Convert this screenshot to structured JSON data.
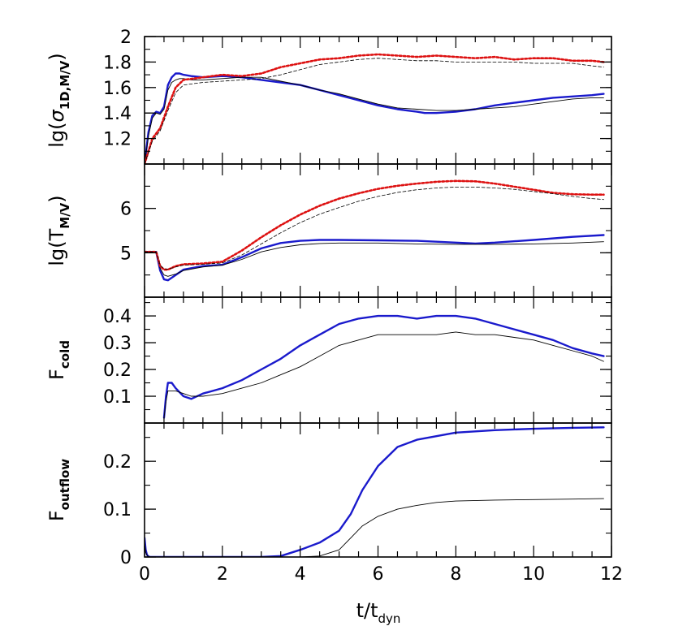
{
  "chart_data": {
    "type": "line",
    "x_axis": {
      "label_main": "t/t",
      "label_sub": "dyn",
      "range": [
        0,
        12
      ],
      "ticks": [
        0,
        2,
        4,
        6,
        8,
        10,
        12
      ],
      "tick_labels": [
        "0",
        "2",
        "4",
        "6",
        "8",
        "10",
        "12"
      ]
    },
    "panels": [
      {
        "id": "sigma",
        "ylabel_parts": [
          {
            "text": "lg(",
            "sub": false
          },
          {
            "text": "σ",
            "sub": false,
            "italic": true
          },
          {
            "text": "1D,M/V",
            "sub": true
          },
          {
            "text": ")",
            "sub": false
          }
        ],
        "ylim": [
          1.0,
          2.0
        ],
        "ticks": [
          1.2,
          1.4,
          1.6,
          1.8,
          2.0
        ],
        "tick_labels": [
          "1.2",
          "1.4",
          "1.6",
          "1.8",
          "2"
        ],
        "series": [
          {
            "style": "mass-thick",
            "color": "#1a1acc",
            "x": [
              0,
              0.1,
              0.2,
              0.3,
              0.4,
              0.5,
              0.6,
              0.7,
              0.8,
              0.9,
              1.0,
              1.2,
              1.5,
              2.0,
              2.5,
              3.0,
              3.5,
              4.0,
              4.5,
              5.0,
              5.5,
              6.0,
              6.5,
              7.0,
              7.2,
              7.5,
              8.0,
              8.5,
              9.0,
              9.5,
              10.0,
              10.5,
              11.0,
              11.5,
              11.8
            ],
            "y": [
              1.0,
              1.25,
              1.38,
              1.41,
              1.4,
              1.45,
              1.62,
              1.68,
              1.71,
              1.71,
              1.7,
              1.69,
              1.68,
              1.69,
              1.68,
              1.66,
              1.64,
              1.62,
              1.58,
              1.54,
              1.5,
              1.46,
              1.43,
              1.41,
              1.4,
              1.4,
              1.41,
              1.43,
              1.46,
              1.48,
              1.5,
              1.52,
              1.53,
              1.54,
              1.55
            ]
          },
          {
            "style": "mass-thin",
            "color": "#000000",
            "x": [
              0,
              0.1,
              0.2,
              0.3,
              0.4,
              0.5,
              0.6,
              0.7,
              0.8,
              0.9,
              1.0,
              1.2,
              1.5,
              2.0,
              2.5,
              3.0,
              3.5,
              4.0,
              4.5,
              5.0,
              5.5,
              6.0,
              6.5,
              7.0,
              7.5,
              8.0,
              8.5,
              9.0,
              9.5,
              10.0,
              10.5,
              11.0,
              11.5,
              11.8
            ],
            "y": [
              1.0,
              1.22,
              1.36,
              1.4,
              1.39,
              1.43,
              1.58,
              1.64,
              1.66,
              1.67,
              1.67,
              1.66,
              1.66,
              1.67,
              1.68,
              1.68,
              1.65,
              1.62,
              1.58,
              1.55,
              1.51,
              1.47,
              1.44,
              1.43,
              1.42,
              1.42,
              1.43,
              1.44,
              1.45,
              1.47,
              1.49,
              1.51,
              1.52,
              1.52
            ]
          },
          {
            "style": "vol-thick",
            "color": "#dd1111",
            "x": [
              0,
              0.2,
              0.4,
              0.6,
              0.8,
              1.0,
              1.5,
              2.0,
              2.5,
              3.0,
              3.5,
              4.0,
              4.5,
              5.0,
              5.5,
              6.0,
              6.5,
              7.0,
              7.5,
              8.0,
              8.5,
              9.0,
              9.5,
              10.0,
              10.5,
              11.0,
              11.5,
              11.8
            ],
            "y": [
              1.0,
              1.2,
              1.28,
              1.45,
              1.6,
              1.66,
              1.68,
              1.7,
              1.69,
              1.71,
              1.76,
              1.79,
              1.82,
              1.83,
              1.85,
              1.86,
              1.85,
              1.84,
              1.85,
              1.84,
              1.83,
              1.84,
              1.82,
              1.83,
              1.83,
              1.81,
              1.81,
              1.8
            ]
          },
          {
            "style": "vol-thin",
            "color": "#000000",
            "x": [
              0,
              0.2,
              0.4,
              0.6,
              0.8,
              1.0,
              1.5,
              2.0,
              2.5,
              3.0,
              3.5,
              4.0,
              4.5,
              5.0,
              5.5,
              6.0,
              6.5,
              7.0,
              7.5,
              8.0,
              8.5,
              9.0,
              9.5,
              10.0,
              10.5,
              11.0,
              11.5,
              11.8
            ],
            "y": [
              1.0,
              1.18,
              1.26,
              1.42,
              1.56,
              1.62,
              1.64,
              1.65,
              1.66,
              1.67,
              1.7,
              1.74,
              1.78,
              1.8,
              1.82,
              1.83,
              1.82,
              1.81,
              1.81,
              1.8,
              1.8,
              1.8,
              1.8,
              1.79,
              1.79,
              1.79,
              1.77,
              1.76
            ]
          }
        ]
      },
      {
        "id": "temperature",
        "ylabel_parts": [
          {
            "text": "lg(T",
            "sub": false
          },
          {
            "text": "M/V",
            "sub": true
          },
          {
            "text": ")",
            "sub": false
          }
        ],
        "ylim": [
          4.0,
          7.0
        ],
        "ticks": [
          5,
          6
        ],
        "tick_labels": [
          "5",
          "6"
        ],
        "series": [
          {
            "style": "mass-thick",
            "color": "#1a1acc",
            "x": [
              0,
              0.3,
              0.4,
              0.5,
              0.6,
              0.8,
              1.0,
              1.5,
              2.0,
              2.5,
              3.0,
              3.5,
              4.0,
              4.5,
              5.0,
              6.0,
              7.0,
              8.0,
              8.5,
              9.0,
              10.0,
              11.0,
              11.8
            ],
            "y": [
              5.02,
              5.02,
              4.6,
              4.4,
              4.38,
              4.5,
              4.62,
              4.7,
              4.73,
              4.9,
              5.1,
              5.22,
              5.27,
              5.29,
              5.29,
              5.28,
              5.27,
              5.23,
              5.21,
              5.23,
              5.29,
              5.36,
              5.4
            ]
          },
          {
            "style": "mass-thin",
            "color": "#000000",
            "x": [
              0,
              0.3,
              0.4,
              0.5,
              0.6,
              0.8,
              1.0,
              1.5,
              2.0,
              2.5,
              3.0,
              3.5,
              4.0,
              4.5,
              5.0,
              6.0,
              7.0,
              8.0,
              9.0,
              10.0,
              11.0,
              11.8
            ],
            "y": [
              5.02,
              5.02,
              4.65,
              4.5,
              4.47,
              4.52,
              4.6,
              4.68,
              4.72,
              4.85,
              5.02,
              5.12,
              5.18,
              5.21,
              5.22,
              5.22,
              5.2,
              5.19,
              5.19,
              5.2,
              5.22,
              5.25
            ]
          },
          {
            "style": "vol-thick",
            "color": "#dd1111",
            "x": [
              0,
              0.3,
              0.4,
              0.5,
              0.6,
              0.8,
              1.0,
              1.5,
              2.0,
              2.5,
              3.0,
              3.5,
              4.0,
              4.5,
              5.0,
              5.5,
              6.0,
              6.5,
              7.0,
              7.5,
              8.0,
              8.5,
              9.0,
              9.5,
              10.0,
              10.5,
              11.0,
              11.5,
              11.8
            ],
            "y": [
              5.02,
              5.02,
              4.7,
              4.62,
              4.62,
              4.7,
              4.74,
              4.76,
              4.8,
              5.05,
              5.35,
              5.62,
              5.86,
              6.06,
              6.22,
              6.34,
              6.44,
              6.51,
              6.56,
              6.6,
              6.62,
              6.61,
              6.56,
              6.49,
              6.42,
              6.35,
              6.32,
              6.31,
              6.31
            ]
          },
          {
            "style": "vol-thin",
            "color": "#000000",
            "x": [
              0,
              0.3,
              0.4,
              0.5,
              0.6,
              0.8,
              1.0,
              1.5,
              2.0,
              2.5,
              3.0,
              3.5,
              4.0,
              4.5,
              5.0,
              5.5,
              6.0,
              6.5,
              7.0,
              7.5,
              8.0,
              8.5,
              9.0,
              9.5,
              10.0,
              10.5,
              11.0,
              11.5,
              11.8
            ],
            "y": [
              5.02,
              5.02,
              4.72,
              4.64,
              4.63,
              4.68,
              4.72,
              4.74,
              4.77,
              4.95,
              5.2,
              5.45,
              5.68,
              5.87,
              6.02,
              6.16,
              6.27,
              6.36,
              6.42,
              6.46,
              6.48,
              6.48,
              6.46,
              6.43,
              6.38,
              6.33,
              6.27,
              6.22,
              6.2
            ]
          }
        ]
      },
      {
        "id": "fcold",
        "ylabel_parts": [
          {
            "text": "F",
            "sub": false
          },
          {
            "text": "cold",
            "sub": true
          }
        ],
        "ylim": [
          0.0,
          0.47
        ],
        "ticks": [
          0.1,
          0.2,
          0.3,
          0.4
        ],
        "tick_labels": [
          "0.1",
          "0.2",
          "0.3",
          "0.4"
        ],
        "series": [
          {
            "style": "mass-thick",
            "color": "#1a1acc",
            "x": [
              0.5,
              0.55,
              0.6,
              0.7,
              0.8,
              1.0,
              1.2,
              1.5,
              2.0,
              2.5,
              3.0,
              3.5,
              4.0,
              4.5,
              5.0,
              5.5,
              6.0,
              6.5,
              7.0,
              7.5,
              8.0,
              8.5,
              9.0,
              9.5,
              10.0,
              10.5,
              11.0,
              11.5,
              11.8
            ],
            "y": [
              0.02,
              0.1,
              0.15,
              0.15,
              0.13,
              0.1,
              0.09,
              0.11,
              0.13,
              0.16,
              0.2,
              0.24,
              0.29,
              0.33,
              0.37,
              0.39,
              0.4,
              0.4,
              0.39,
              0.4,
              0.4,
              0.39,
              0.37,
              0.35,
              0.33,
              0.31,
              0.28,
              0.26,
              0.25
            ]
          },
          {
            "style": "mass-thin",
            "color": "#000000",
            "x": [
              0.5,
              0.55,
              0.6,
              0.7,
              0.8,
              1.0,
              1.2,
              1.5,
              2.0,
              2.5,
              3.0,
              3.5,
              4.0,
              4.5,
              5.0,
              5.5,
              6.0,
              6.5,
              7.0,
              7.5,
              8.0,
              8.5,
              9.0,
              9.5,
              10.0,
              10.5,
              11.0,
              11.5,
              11.8
            ],
            "y": [
              0.02,
              0.08,
              0.12,
              0.12,
              0.12,
              0.11,
              0.1,
              0.1,
              0.11,
              0.13,
              0.15,
              0.18,
              0.21,
              0.25,
              0.29,
              0.31,
              0.33,
              0.33,
              0.33,
              0.33,
              0.34,
              0.33,
              0.33,
              0.32,
              0.31,
              0.29,
              0.27,
              0.25,
              0.23
            ]
          }
        ]
      },
      {
        "id": "foutflow",
        "ylabel_parts": [
          {
            "text": "F",
            "sub": false
          },
          {
            "text": "outflow",
            "sub": true
          }
        ],
        "ylim": [
          0.0,
          0.28
        ],
        "ticks": [
          0,
          0.1,
          0.2
        ],
        "tick_labels": [
          "0",
          "0.1",
          "0.2"
        ],
        "series": [
          {
            "style": "mass-thick",
            "color": "#1a1acc",
            "x": [
              0,
              0.03,
              0.06,
              0.1,
              0.15,
              1.0,
              2.0,
              3.0,
              3.5,
              4.0,
              4.5,
              5.0,
              5.3,
              5.6,
              6.0,
              6.5,
              7.0,
              8.0,
              9.0,
              10.0,
              11.0,
              11.8
            ],
            "y": [
              0.04,
              0.015,
              0.005,
              0.001,
              0.0,
              0.0,
              0.0,
              0.0,
              0.002,
              0.015,
              0.03,
              0.055,
              0.09,
              0.14,
              0.19,
              0.23,
              0.245,
              0.26,
              0.265,
              0.268,
              0.27,
              0.271
            ]
          },
          {
            "style": "mass-thin",
            "color": "#000000",
            "x": [
              0,
              0.03,
              0.06,
              0.1,
              0.15,
              1.0,
              2.0,
              3.0,
              4.0,
              4.5,
              5.0,
              5.3,
              5.6,
              6.0,
              6.5,
              7.0,
              7.5,
              8.0,
              9.0,
              10.0,
              11.0,
              11.8
            ],
            "y": [
              0.03,
              0.01,
              0.004,
              0.001,
              0.0,
              0.0,
              0.0,
              0.0,
              0.0,
              0.002,
              0.015,
              0.04,
              0.065,
              0.085,
              0.1,
              0.108,
              0.114,
              0.117,
              0.119,
              0.12,
              0.121,
              0.122
            ]
          }
        ]
      }
    ]
  }
}
